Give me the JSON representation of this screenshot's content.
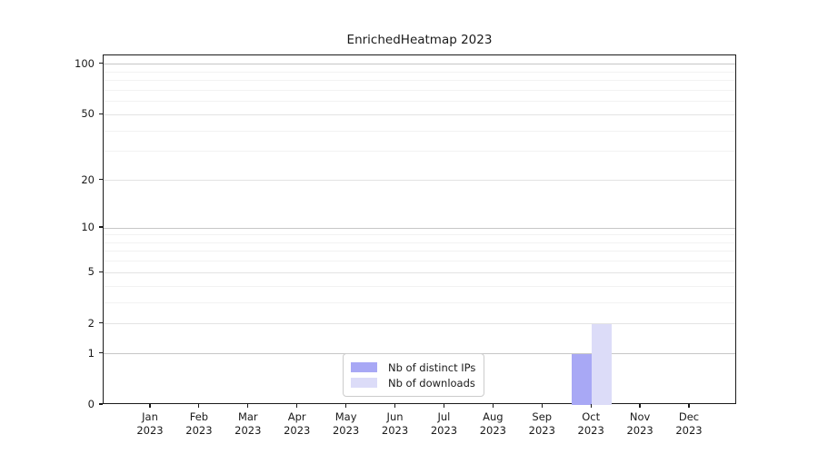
{
  "chart_data": {
    "type": "bar",
    "title": "EnrichedHeatmap 2023",
    "categories": [
      "Jan",
      "Feb",
      "Mar",
      "Apr",
      "May",
      "Jun",
      "Jul",
      "Aug",
      "Sep",
      "Oct",
      "Nov",
      "Dec"
    ],
    "x_year_label": "2023",
    "series": [
      {
        "name": "Nb of distinct IPs",
        "color": "#a8a8f5",
        "values": [
          0,
          0,
          0,
          0,
          0,
          0,
          0,
          0,
          0,
          1,
          0,
          0
        ]
      },
      {
        "name": "Nb of downloads",
        "color": "#dcdcf8",
        "values": [
          0,
          0,
          0,
          0,
          0,
          0,
          0,
          0,
          0,
          2,
          0,
          0
        ]
      }
    ],
    "yscale": "log1p",
    "ylim": [
      0,
      113
    ],
    "y_tick_values": [
      0,
      1,
      2,
      5,
      10,
      20,
      50,
      100
    ],
    "y_tick_labels": [
      "0",
      "1",
      "2",
      "5",
      "10",
      "20",
      "50",
      "100"
    ],
    "y_major_grid_values": [
      1,
      10,
      100
    ],
    "y_labeled_minor_grid_values": [
      2,
      5,
      20,
      50
    ],
    "y_unlabeled_minor_grid_values": [
      3,
      4,
      6,
      7,
      8,
      9,
      30,
      40,
      60,
      70,
      80,
      90
    ],
    "grid": "horizontal",
    "legend_position": "lower center",
    "colors": {
      "major_grid": "#c6c6c6",
      "labeled_minor_grid": "#e3e3e3",
      "unlabeled_minor_grid": "#f2f2f2",
      "axis": "#1a1a1a",
      "text": "#1a1a1a"
    }
  }
}
